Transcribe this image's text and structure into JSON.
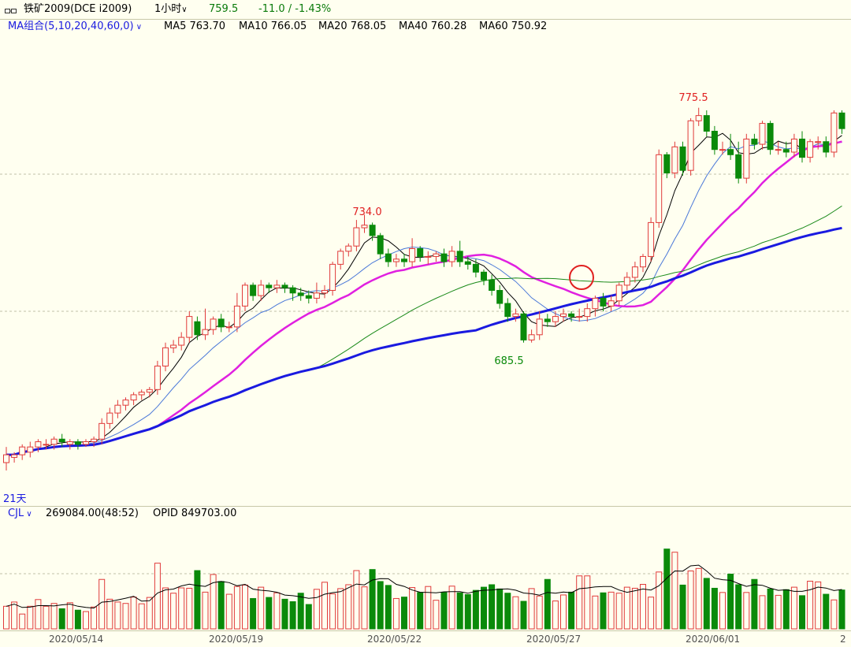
{
  "header": {
    "instrument": "铁矿2009(DCE i2009)",
    "period": "1小时",
    "price": "759.5",
    "change": "-11.0 / -1.43%",
    "window_icon": "window-toggle-icon"
  },
  "ma_indicator": {
    "name": "MA组合(5,10,20,40,60,0)",
    "lines": [
      {
        "label": "MA5 763.70",
        "color": "#000000"
      },
      {
        "label": "MA10 766.05",
        "color": "#4a78d8"
      },
      {
        "label": "MA20 768.05",
        "color": "#e020e0"
      },
      {
        "label": "MA40 760.28",
        "color": "#1a8a1a"
      },
      {
        "label": "MA60 750.92",
        "color": "#1a1ae0"
      }
    ]
  },
  "volume_indicator": {
    "name": "CJL",
    "volume": "269084.00(48:52)",
    "opid": "OPID 849703.00"
  },
  "annotations": {
    "high1": "734.0",
    "low1": "685.5",
    "high2": "775.5",
    "period_count": "21天"
  },
  "x_axis": {
    "date_labels": [
      "2020/05/14",
      "2020/05/19",
      "2020/05/22",
      "2020/05/27",
      "2020/06/01",
      "2"
    ]
  },
  "colors": {
    "background": "#fffff0",
    "up": "#e03a3a",
    "down": "#0a8a0a",
    "grid": "#c0c0a8"
  },
  "chart_data": {
    "type": "candlestick",
    "y_range": [
      623,
      803
    ],
    "volume_range": [
      0,
      290000
    ],
    "candles": [
      [
        639,
        642,
        636,
        645
      ],
      [
        641,
        642,
        639,
        643
      ],
      [
        642,
        645,
        640,
        646
      ],
      [
        643,
        645,
        641,
        647
      ],
      [
        645,
        647,
        643,
        648
      ],
      [
        646,
        646,
        644,
        648
      ],
      [
        646,
        648,
        644,
        649
      ],
      [
        648,
        647,
        645,
        650
      ],
      [
        646,
        647,
        644,
        648
      ],
      [
        647,
        646,
        644,
        648
      ],
      [
        646,
        647,
        645,
        648
      ],
      [
        647,
        648,
        645,
        649
      ],
      [
        648,
        654,
        646,
        656
      ],
      [
        654,
        658,
        652,
        660
      ],
      [
        658,
        661,
        656,
        663
      ],
      [
        661,
        663,
        659,
        664
      ],
      [
        663,
        665,
        661,
        666
      ],
      [
        665,
        666,
        663,
        667
      ],
      [
        666,
        667,
        664,
        668
      ],
      [
        667,
        676,
        665,
        678
      ],
      [
        676,
        683,
        674,
        685
      ],
      [
        683,
        684,
        681,
        686
      ],
      [
        684,
        687,
        682,
        689
      ],
      [
        687,
        695,
        685,
        697
      ],
      [
        693,
        688,
        686,
        695
      ],
      [
        688,
        690,
        686,
        698
      ],
      [
        690,
        694,
        688,
        695
      ],
      [
        694,
        691,
        689,
        696
      ],
      [
        691,
        691,
        689,
        693
      ],
      [
        691,
        699,
        689,
        704
      ],
      [
        699,
        707,
        697,
        708
      ],
      [
        707,
        703,
        701,
        708
      ],
      [
        703,
        707,
        701,
        709
      ],
      [
        707,
        706,
        704,
        708
      ],
      [
        706,
        707,
        704,
        709
      ],
      [
        707,
        706,
        704,
        708
      ],
      [
        706,
        704,
        701,
        707
      ],
      [
        704,
        703,
        701,
        706
      ],
      [
        703,
        702,
        700,
        705
      ],
      [
        702,
        704,
        700,
        708
      ],
      [
        704,
        705,
        702,
        707
      ],
      [
        705,
        715,
        703,
        716
      ],
      [
        715,
        720,
        713,
        721
      ],
      [
        720,
        722,
        718,
        723
      ],
      [
        722,
        729,
        720,
        732
      ],
      [
        729,
        730,
        727,
        734
      ],
      [
        730,
        726,
        724,
        731
      ],
      [
        726,
        719,
        717,
        727
      ],
      [
        719,
        716,
        714,
        721
      ],
      [
        716,
        717,
        714,
        719
      ],
      [
        717,
        716,
        714,
        719
      ],
      [
        716,
        721,
        714,
        725
      ],
      [
        721,
        718,
        716,
        722
      ],
      [
        718,
        718,
        715,
        720
      ],
      [
        718,
        719,
        716,
        720
      ],
      [
        719,
        716,
        714,
        721
      ],
      [
        716,
        720,
        714,
        722
      ],
      [
        720,
        716,
        714,
        724
      ],
      [
        716,
        715,
        713,
        718
      ],
      [
        715,
        712,
        710,
        717
      ],
      [
        712,
        709,
        707,
        713
      ],
      [
        709,
        705,
        703,
        711
      ],
      [
        705,
        700,
        698,
        707
      ],
      [
        700,
        695,
        693,
        702
      ],
      [
        695,
        696,
        693,
        698
      ],
      [
        696,
        686,
        685,
        697
      ],
      [
        686,
        688,
        685,
        690
      ],
      [
        688,
        694,
        686,
        697
      ],
      [
        694,
        693,
        691,
        696
      ],
      [
        693,
        695,
        691,
        697
      ],
      [
        695,
        696,
        693,
        698
      ],
      [
        696,
        695,
        693,
        697
      ],
      [
        695,
        695,
        693,
        698
      ],
      [
        695,
        698,
        693,
        700
      ],
      [
        698,
        702,
        695,
        703
      ],
      [
        702,
        699,
        697,
        704
      ],
      [
        699,
        701,
        697,
        703
      ],
      [
        701,
        707,
        699,
        708
      ],
      [
        707,
        710,
        705,
        712
      ],
      [
        710,
        714,
        708,
        716
      ],
      [
        714,
        718,
        712,
        719
      ],
      [
        718,
        731,
        716,
        733
      ],
      [
        731,
        757,
        729,
        759
      ],
      [
        757,
        750,
        748,
        758
      ],
      [
        750,
        760,
        748,
        762
      ],
      [
        760,
        751,
        749,
        762
      ],
      [
        751,
        770,
        749,
        771
      ],
      [
        770,
        772,
        768,
        775
      ],
      [
        772,
        766,
        764,
        774
      ],
      [
        766,
        759,
        757,
        768
      ],
      [
        759,
        759,
        757,
        762
      ],
      [
        759,
        757,
        755,
        765
      ],
      [
        757,
        748,
        746,
        762
      ],
      [
        748,
        763,
        746,
        765
      ],
      [
        763,
        761,
        759,
        765
      ],
      [
        761,
        769,
        759,
        770
      ],
      [
        769,
        759,
        757,
        770
      ],
      [
        759,
        759,
        757,
        762
      ],
      [
        759,
        758,
        756,
        762
      ],
      [
        758,
        763,
        756,
        765
      ],
      [
        763,
        756,
        754,
        766
      ],
      [
        756,
        762,
        754,
        763
      ],
      [
        762,
        762,
        759,
        764
      ],
      [
        762,
        758,
        756,
        764
      ],
      [
        758,
        773,
        756,
        774
      ],
      [
        773,
        767,
        765,
        774
      ]
    ],
    "volumes": [
      64000,
      76000,
      42000,
      64000,
      83000,
      64000,
      72000,
      57000,
      74000,
      53000,
      49000,
      62000,
      140000,
      84000,
      76000,
      72000,
      90000,
      71000,
      89000,
      186000,
      116000,
      101000,
      116000,
      115000,
      165000,
      104000,
      154000,
      134000,
      98000,
      120000,
      124000,
      86000,
      118000,
      89000,
      102000,
      84000,
      77000,
      101000,
      69000,
      112000,
      132000,
      99000,
      114000,
      125000,
      165000,
      119000,
      168000,
      134000,
      123000,
      86000,
      90000,
      117000,
      103000,
      120000,
      81000,
      103000,
      121000,
      102000,
      97000,
      109000,
      118000,
      125000,
      113000,
      101000,
      91000,
      78000,
      114000,
      93000,
      140000,
      79000,
      96000,
      104000,
      150000,
      150000,
      93000,
      102000,
      104000,
      101000,
      118000,
      115000,
      126000,
      90000,
      161000,
      226000,
      217000,
      124000,
      164000,
      171000,
      143000,
      115000,
      103000,
      155000,
      125000,
      103000,
      140000,
      94000,
      113000,
      95000,
      111000,
      118000,
      94000,
      135000,
      133000,
      98000,
      82000,
      110000
    ]
  }
}
